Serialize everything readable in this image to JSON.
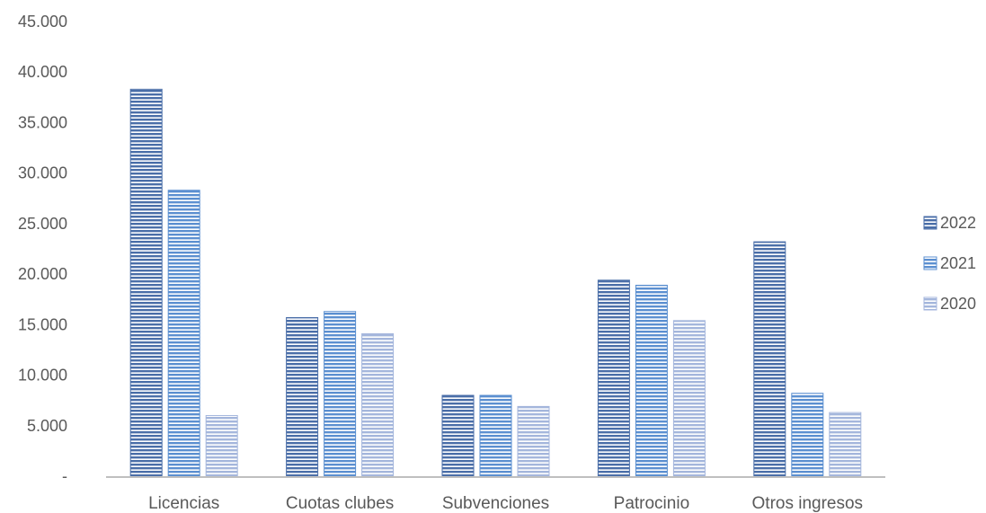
{
  "chart_data": {
    "type": "bar",
    "categories": [
      "Licencias",
      "Cuotas clubes",
      "Subvenciones",
      "Patrocinio",
      "Otros ingresos"
    ],
    "series": [
      {
        "name": "2022",
        "values": [
          38300,
          15700,
          8000,
          19400,
          23200
        ],
        "color": "#4a6ea8"
      },
      {
        "name": "2021",
        "values": [
          28300,
          16300,
          8000,
          18900,
          8200
        ],
        "color": "#5b8fd0"
      },
      {
        "name": "2020",
        "values": [
          6000,
          14100,
          6900,
          15400,
          6300
        ],
        "color": "#a4b6dc"
      }
    ],
    "ylim": [
      0,
      45000
    ],
    "yticks": [
      0,
      5000,
      10000,
      15000,
      20000,
      25000,
      30000,
      35000,
      40000,
      45000
    ],
    "ytick_labels": [
      "-",
      "5.000",
      "10.000",
      "15.000",
      "20.000",
      "25.000",
      "30.000",
      "35.000",
      "40.000",
      "45.000"
    ],
    "bar_pattern": "horizontal-stripes",
    "grid": false,
    "legend_position": "right"
  }
}
